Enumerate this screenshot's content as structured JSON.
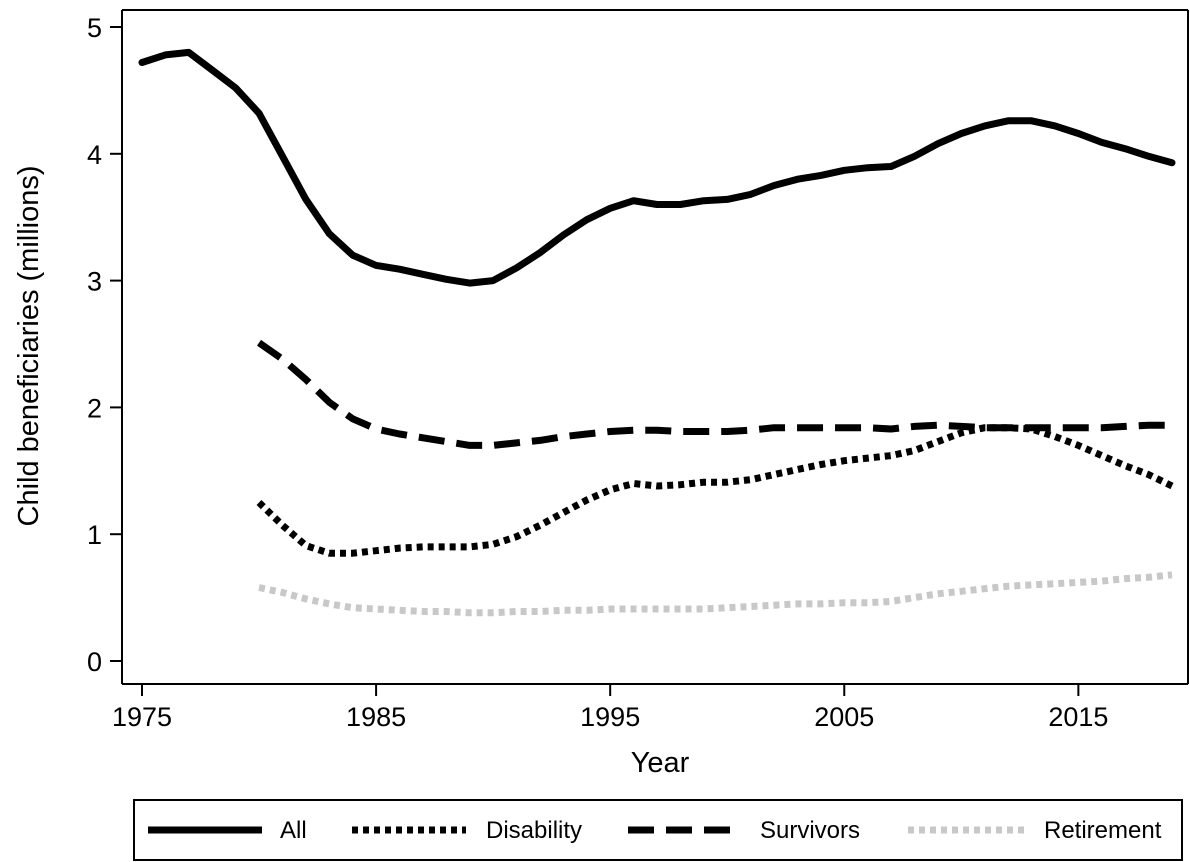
{
  "chart_data": {
    "type": "line",
    "title": "",
    "xlabel": "Year",
    "ylabel": "Child beneficiaries (millions)",
    "xlim": [
      1975,
      2019
    ],
    "ylim": [
      0,
      5
    ],
    "xticks": [
      1975,
      1985,
      1995,
      2005,
      2015
    ],
    "yticks": [
      0,
      1,
      2,
      3,
      4,
      5
    ],
    "grid": false,
    "legend_position": "bottom",
    "series": [
      {
        "name": "All",
        "style": "solid",
        "color": "#000000",
        "x": [
          1975,
          1976,
          1977,
          1978,
          1979,
          1980,
          1981,
          1982,
          1983,
          1984,
          1985,
          1986,
          1987,
          1988,
          1989,
          1990,
          1991,
          1992,
          1993,
          1994,
          1995,
          1996,
          1997,
          1998,
          1999,
          2000,
          2001,
          2002,
          2003,
          2004,
          2005,
          2006,
          2007,
          2008,
          2009,
          2010,
          2011,
          2012,
          2013,
          2014,
          2015,
          2016,
          2017,
          2018,
          2019
        ],
        "values": [
          4.72,
          4.78,
          4.8,
          4.66,
          4.52,
          4.32,
          3.98,
          3.64,
          3.37,
          3.2,
          3.12,
          3.09,
          3.05,
          3.01,
          2.98,
          3.0,
          3.1,
          3.22,
          3.36,
          3.48,
          3.57,
          3.63,
          3.6,
          3.6,
          3.63,
          3.64,
          3.68,
          3.75,
          3.8,
          3.83,
          3.87,
          3.89,
          3.9,
          3.98,
          4.08,
          4.16,
          4.22,
          4.26,
          4.26,
          4.22,
          4.16,
          4.09,
          4.04,
          3.98,
          3.93
        ]
      },
      {
        "name": "Disability",
        "style": "dotted",
        "color": "#000000",
        "x": [
          1980,
          1981,
          1982,
          1983,
          1984,
          1985,
          1986,
          1987,
          1988,
          1989,
          1990,
          1991,
          1992,
          1993,
          1994,
          1995,
          1996,
          1997,
          1998,
          1999,
          2000,
          2001,
          2002,
          2003,
          2004,
          2005,
          2006,
          2007,
          2008,
          2009,
          2010,
          2011,
          2012,
          2013,
          2014,
          2015,
          2016,
          2017,
          2018,
          2019
        ],
        "values": [
          1.25,
          1.07,
          0.91,
          0.85,
          0.85,
          0.87,
          0.89,
          0.9,
          0.9,
          0.9,
          0.92,
          0.98,
          1.07,
          1.17,
          1.27,
          1.35,
          1.4,
          1.38,
          1.39,
          1.41,
          1.41,
          1.43,
          1.47,
          1.51,
          1.55,
          1.58,
          1.6,
          1.62,
          1.66,
          1.73,
          1.8,
          1.84,
          1.84,
          1.83,
          1.77,
          1.7,
          1.62,
          1.54,
          1.47,
          1.38
        ]
      },
      {
        "name": "Survivors",
        "style": "dashed",
        "color": "#000000",
        "x": [
          1980,
          1981,
          1982,
          1983,
          1984,
          1985,
          1986,
          1987,
          1988,
          1989,
          1990,
          1991,
          1992,
          1993,
          1994,
          1995,
          1996,
          1997,
          1998,
          1999,
          2000,
          2001,
          2002,
          2003,
          2004,
          2005,
          2006,
          2007,
          2008,
          2009,
          2010,
          2011,
          2012,
          2013,
          2014,
          2015,
          2016,
          2017,
          2018,
          2019
        ],
        "values": [
          2.51,
          2.38,
          2.22,
          2.04,
          1.91,
          1.83,
          1.79,
          1.76,
          1.73,
          1.7,
          1.7,
          1.72,
          1.74,
          1.77,
          1.79,
          1.81,
          1.82,
          1.82,
          1.81,
          1.81,
          1.81,
          1.82,
          1.84,
          1.84,
          1.84,
          1.84,
          1.84,
          1.83,
          1.85,
          1.86,
          1.85,
          1.84,
          1.84,
          1.84,
          1.84,
          1.84,
          1.84,
          1.85,
          1.86,
          1.86
        ]
      },
      {
        "name": "Retirement",
        "style": "dotted",
        "color": "#c8c8c8",
        "x": [
          1980,
          1981,
          1982,
          1983,
          1984,
          1985,
          1986,
          1987,
          1988,
          1989,
          1990,
          1991,
          1992,
          1993,
          1994,
          1995,
          1996,
          1997,
          1998,
          1999,
          2000,
          2001,
          2002,
          2003,
          2004,
          2005,
          2006,
          2007,
          2008,
          2009,
          2010,
          2011,
          2012,
          2013,
          2014,
          2015,
          2016,
          2017,
          2018,
          2019
        ],
        "values": [
          0.58,
          0.54,
          0.49,
          0.45,
          0.42,
          0.41,
          0.4,
          0.39,
          0.39,
          0.38,
          0.38,
          0.39,
          0.39,
          0.4,
          0.4,
          0.41,
          0.41,
          0.41,
          0.41,
          0.41,
          0.42,
          0.43,
          0.44,
          0.45,
          0.45,
          0.46,
          0.46,
          0.47,
          0.5,
          0.53,
          0.55,
          0.57,
          0.59,
          0.6,
          0.61,
          0.62,
          0.63,
          0.65,
          0.66,
          0.68
        ]
      }
    ]
  }
}
